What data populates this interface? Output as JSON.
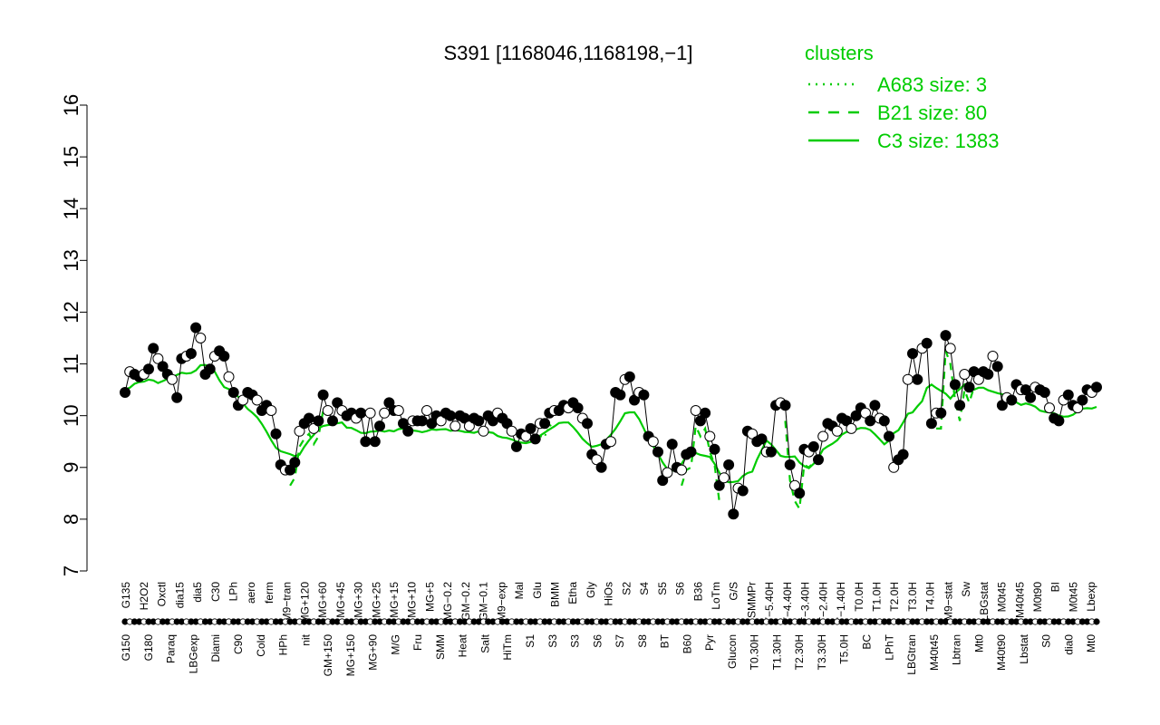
{
  "chart_data": {
    "type": "line",
    "title": "S391 [1168046,1168198,−1]",
    "ylim": [
      7,
      16
    ],
    "yticks": [
      "7",
      "8",
      "9",
      "10",
      "11",
      "12",
      "13",
      "14",
      "15",
      "16"
    ],
    "grid": false,
    "categories_top": [
      "G135",
      "H2O2",
      "Oxctl",
      "dia15",
      "dia5",
      "C30",
      "LPh",
      "aero",
      "ferm",
      "M9−tran",
      "MG+120",
      "MG+60",
      "MG+45",
      "MG+30",
      "MG+25",
      "MG+15",
      "MG+10",
      "MG+5",
      "MG−0.2",
      "GM−0.2",
      "GM−0.1",
      "M9−exp",
      "Mal",
      "Glu",
      "BMM",
      "Etha",
      "Gly",
      "HiOs",
      "S2",
      "S4",
      "S5",
      "S6",
      "B36",
      "LoTm",
      "G/S",
      "SMMPr",
      "T−5.40H",
      "T−4.40H",
      "T−3.40H",
      "T−2.40H",
      "T−1.40H",
      "T0.0H",
      "T1.0H",
      "T2.0H",
      "T3.0H",
      "T4.0H",
      "M9−stat",
      "Sw",
      "LBGstat",
      "M0t45",
      "M40t45",
      "M0t90",
      "BI",
      "M0t45",
      "Lbexp"
    ],
    "categories_bottom": [
      "G150",
      "G180",
      "Paraq",
      "LBGexp",
      "Diami",
      "C90",
      "Cold",
      "HPh",
      "nit",
      "GM+150",
      "MG+150",
      "MG+90",
      "M/G",
      "Fru",
      "SMM",
      "Heat",
      "Salt",
      "HiTm",
      "S1",
      "S3",
      "S3",
      "S6",
      "S7",
      "S8",
      "BT",
      "B60",
      "Pyr",
      "Glucon",
      "T0.30H",
      "T1.30H",
      "T2.30H",
      "T3.30H",
      "T5.0H",
      "BC",
      "LPhT",
      "LBGtran",
      "M40t45",
      "Lbtran",
      "Mt0",
      "M40t90",
      "Lbstat",
      "S0",
      "dia0",
      "Mt0"
    ],
    "series": [
      {
        "values": [
          10.45,
          10.85,
          10.8,
          10.75,
          10.8,
          10.9,
          11.3,
          11.1,
          10.95,
          10.8,
          10.7,
          10.35,
          11.1,
          11.15,
          11.2,
          11.7,
          11.5,
          10.8,
          10.9,
          11.15,
          11.25,
          11.15,
          10.75,
          10.45,
          10.2,
          10.3,
          10.45,
          10.4,
          10.3,
          10.1,
          10.2,
          10.1,
          9.65,
          9.05,
          8.95,
          8.95,
          9.1,
          9.7,
          9.85,
          9.95,
          9.75,
          9.9,
          10.4,
          10.1,
          9.9,
          10.25,
          10.1,
          10.0,
          10.05,
          9.95,
          10.05,
          9.5,
          10.05,
          9.5,
          9.8,
          10.05,
          10.25,
          10.1,
          10.1,
          9.85,
          9.7,
          9.9,
          9.9,
          9.9,
          10.1,
          9.85,
          10.0,
          9.9,
          10.05,
          10.0,
          9.8,
          10.0,
          9.95,
          9.8,
          9.95,
          9.9,
          9.7,
          10.0,
          9.9,
          10.05,
          9.95,
          9.85,
          9.7,
          9.4,
          9.65,
          9.6,
          9.75,
          9.55,
          9.85,
          9.85,
          10.05,
          10.1,
          10.1,
          10.2,
          10.15,
          10.25,
          10.15,
          9.95,
          9.85,
          9.25,
          9.15,
          9.0,
          9.45,
          9.5,
          10.45,
          10.4,
          10.7,
          10.75,
          10.3,
          10.45,
          10.4,
          9.6,
          9.5,
          9.3,
          8.75,
          8.9,
          9.45,
          9.0,
          8.95,
          9.25,
          9.3,
          10.1,
          9.9,
          10.05,
          9.6,
          9.35,
          8.65,
          8.8,
          9.05,
          8.1,
          8.6,
          8.55,
          9.7,
          9.65,
          9.5,
          9.55,
          9.3,
          9.3,
          10.2,
          10.25,
          10.2,
          9.05,
          8.65,
          8.5,
          9.35,
          9.3,
          9.4,
          9.15,
          9.6,
          9.85,
          9.8,
          9.7,
          9.95,
          9.9,
          9.75,
          10.0,
          10.15,
          10.05,
          9.9,
          10.2,
          9.95,
          9.9,
          9.6,
          9.0,
          9.15,
          9.25,
          10.7,
          11.2,
          10.7,
          11.3,
          11.4,
          9.85,
          10.05,
          10.05,
          11.55,
          11.3,
          10.6,
          10.2,
          10.8,
          10.55,
          10.85,
          10.7,
          10.85,
          10.8,
          11.15,
          10.95,
          10.2,
          10.35,
          10.3,
          10.6,
          10.5,
          10.5,
          10.35,
          10.55,
          10.5,
          10.45,
          10.15,
          9.95,
          9.9,
          10.3,
          10.4,
          10.2,
          10.15,
          10.3,
          10.5,
          10.45,
          10.55
        ]
      }
    ],
    "legend": {
      "title": "clusters",
      "placement": "top-right",
      "entries": [
        {
          "label": "A683 size: 3",
          "style": "dotted"
        },
        {
          "label": "B21 size: 80",
          "style": "dashed"
        },
        {
          "label": "C3 size: 1383",
          "style": "solid"
        }
      ]
    },
    "colors": {
      "series": "#000000",
      "cluster": "#00cc00",
      "axis": "#000000",
      "open_marker": "#ffffff"
    }
  }
}
